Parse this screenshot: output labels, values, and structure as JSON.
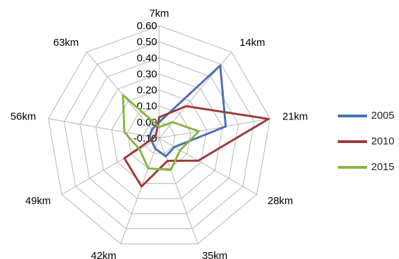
{
  "chart_data": {
    "type": "radar",
    "title": "",
    "categories": [
      "7km",
      "14km",
      "21km",
      "28km",
      "35km",
      "42km",
      "49km",
      "56km",
      "63km"
    ],
    "rlim": [
      -0.1,
      0.6
    ],
    "ticks": [
      -0.1,
      0.0,
      0.1,
      0.2,
      0.3,
      0.4,
      0.5,
      0.6
    ],
    "tick_labels": [
      "-0.10",
      "0.00",
      "0.10",
      "0.20",
      "0.30",
      "0.40",
      "0.50",
      "0.60"
    ],
    "grid": true,
    "legend_position": "right",
    "series": [
      {
        "name": "2005",
        "color": "#4a6fb5",
        "values": [
          0.0,
          0.49,
          0.32,
          0.01,
          0.02,
          -0.03,
          -0.05,
          -0.04,
          -0.03
        ]
      },
      {
        "name": "2010",
        "color": "#9e3b3b",
        "values": [
          0.03,
          0.16,
          0.59,
          0.18,
          0.05,
          0.22,
          0.15,
          -0.07,
          -0.07
        ]
      },
      {
        "name": "2015",
        "color": "#8ab43f",
        "values": [
          -0.03,
          0.03,
          0.15,
          0.05,
          0.11,
          0.1,
          0.04,
          0.12,
          0.25
        ]
      }
    ]
  }
}
